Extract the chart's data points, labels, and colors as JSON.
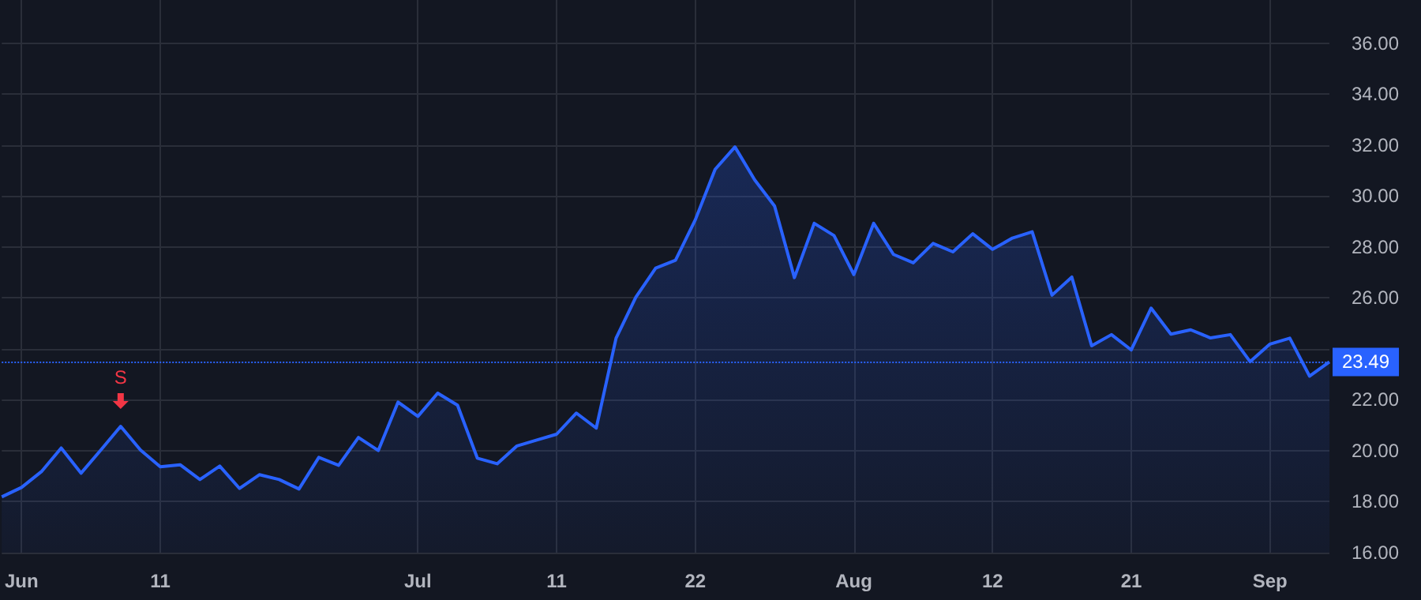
{
  "chart_data": {
    "type": "area",
    "categories": [
      null,
      "Jun",
      null,
      null,
      null,
      null,
      null,
      null,
      "11",
      null,
      null,
      null,
      null,
      null,
      null,
      null,
      null,
      null,
      null,
      null,
      null,
      "Jul",
      null,
      null,
      null,
      null,
      null,
      null,
      "11",
      null,
      null,
      null,
      null,
      null,
      null,
      "22",
      null,
      null,
      null,
      null,
      null,
      null,
      null,
      "Aug",
      null,
      null,
      null,
      null,
      null,
      null,
      "12",
      null,
      null,
      null,
      null,
      null,
      null,
      "21",
      null,
      null,
      null,
      null,
      null,
      null,
      "Sep",
      null,
      null,
      null
    ],
    "series": [
      {
        "color": "#2962ff",
        "values": [
          18.19,
          18.56,
          19.18,
          20.11,
          19.12,
          20.03,
          20.96,
          20.03,
          19.37,
          19.45,
          18.87,
          19.4,
          18.52,
          19.06,
          18.87,
          18.5,
          19.74,
          19.43,
          20.52,
          20.01,
          21.91,
          21.35,
          22.26,
          21.79,
          19.71,
          19.49,
          20.19,
          20.42,
          20.65,
          21.48,
          20.89,
          24.42,
          26.03,
          27.17,
          27.48,
          29.07,
          31.05,
          31.93,
          30.63,
          29.61,
          26.8,
          28.93,
          28.45,
          26.92,
          28.93,
          27.71,
          27.38,
          28.14,
          27.81,
          28.52,
          27.91,
          28.35,
          28.6,
          26.11,
          26.82,
          24.12,
          24.56,
          23.96,
          25.6,
          24.58,
          24.75,
          24.43,
          24.56,
          23.5,
          24.19,
          24.42,
          22.93,
          23.49
        ]
      }
    ],
    "ylim": [
      16,
      37.7
    ],
    "yticks": [
      {
        "value": 16,
        "label": "16.00"
      },
      {
        "value": 18,
        "label": "18.00"
      },
      {
        "value": 20,
        "label": "20.00"
      },
      {
        "value": 22,
        "label": "22.00"
      },
      {
        "value": 24,
        "label": null
      },
      {
        "value": 26,
        "label": "26.00"
      },
      {
        "value": 28,
        "label": "28.00"
      },
      {
        "value": 30,
        "label": "30.00"
      },
      {
        "value": 32,
        "label": "32.00"
      },
      {
        "value": 34,
        "label": "34.00"
      },
      {
        "value": 36,
        "label": "36.00"
      }
    ],
    "grid": true,
    "ref_lines": [
      {
        "axis": "y",
        "value": 23.49,
        "label": "23.49",
        "color": "#2962ff",
        "line_style": "dotted"
      }
    ],
    "annotations": [
      {
        "text": "S",
        "y": 20.96
      }
    ]
  }
}
